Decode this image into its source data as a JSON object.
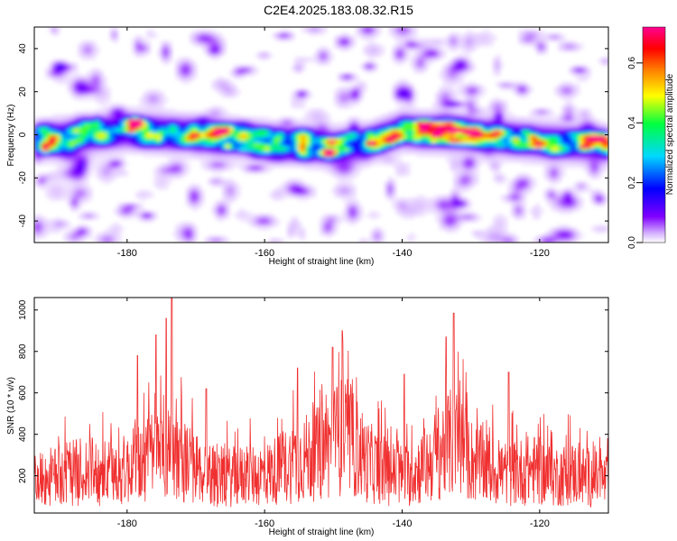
{
  "title": "C2E4.2025.183.08.32.R15",
  "colors": {
    "snr_line": "#f03030",
    "background": "#ffffff",
    "axis": "#000000"
  },
  "chart_data": [
    {
      "type": "heatmap",
      "xlabel": "Height of straight line (km)",
      "ylabel": "Frequency (Hz)",
      "xlim": [
        -193.5,
        -110
      ],
      "ylim": [
        -50,
        50
      ],
      "xticks": [
        -180,
        -160,
        -140,
        -120
      ],
      "yticks": [
        -40,
        -20,
        0,
        20,
        40
      ],
      "grid": false,
      "colorbar": {
        "label": "Normalized spectral amplitude",
        "range": [
          0,
          0.72
        ],
        "ticks": [
          0.0,
          0.2,
          0.4,
          0.6
        ],
        "colors": [
          "#ffffff",
          "#8000ff",
          "#0000ff",
          "#00e0ff",
          "#00ff40",
          "#ffff00",
          "#ff8000",
          "#ff0000",
          "#ff0080"
        ]
      },
      "band": {
        "center_freq_hz": [
          [
            -193.5,
            -3
          ],
          [
            -180,
            2
          ],
          [
            -170,
            0
          ],
          [
            -160,
            -3
          ],
          [
            -150,
            -6
          ],
          [
            -145,
            -4
          ],
          [
            -140,
            2
          ],
          [
            -130,
            0
          ],
          [
            -120,
            -3
          ],
          [
            -110,
            -5
          ]
        ],
        "half_width_hz": 7
      },
      "peaks": [
        {
          "x": -144.5,
          "y": -4,
          "value": 0.68
        },
        {
          "x": -135,
          "y": 0,
          "value": 0.7
        },
        {
          "x": -113.5,
          "y": -6,
          "value": 0.7
        },
        {
          "x": -179.5,
          "y": 2,
          "value": 0.45
        },
        {
          "x": -132.5,
          "y": 2,
          "value": 0.48
        },
        {
          "x": -123.5,
          "y": -2,
          "value": 0.4
        },
        {
          "x": -148,
          "y": -7,
          "value": 0.35
        },
        {
          "x": -170,
          "y": 0,
          "value": 0.32
        }
      ]
    },
    {
      "type": "line",
      "xlabel": "Height of straight line (km)",
      "ylabel": "SNR (10 * v/v)",
      "xlim": [
        -193.5,
        -110
      ],
      "ylim": [
        20,
        1060
      ],
      "xticks": [
        -180,
        -160,
        -140,
        -120
      ],
      "yticks": [
        200,
        400,
        600,
        800,
        1000
      ],
      "grid": false,
      "envelope": {
        "x": [
          -193.5,
          -190,
          -186,
          -183,
          -180,
          -176,
          -174,
          -172,
          -169,
          -166,
          -163,
          -160,
          -157,
          -155,
          -152,
          -149,
          -147,
          -145,
          -142,
          -139,
          -136,
          -134,
          -132,
          -130,
          -127,
          -124,
          -121,
          -118,
          -115,
          -112,
          -110
        ],
        "base": [
          170,
          195,
          220,
          205,
          225,
          290,
          330,
          270,
          210,
          185,
          195,
          200,
          240,
          270,
          300,
          380,
          340,
          260,
          210,
          195,
          260,
          330,
          360,
          270,
          220,
          205,
          225,
          195,
          205,
          180,
          170
        ],
        "peak_values": [
          {
            "x": -173.5,
            "y": 1060
          },
          {
            "x": -174.3,
            "y": 960
          },
          {
            "x": -148.7,
            "y": 900
          },
          {
            "x": -132.5,
            "y": 985
          },
          {
            "x": -133.6,
            "y": 870
          },
          {
            "x": -155.2,
            "y": 720
          },
          {
            "x": -178.5,
            "y": 780
          },
          {
            "x": -175.8,
            "y": 880
          },
          {
            "x": -150.1,
            "y": 820
          },
          {
            "x": -124.5,
            "y": 700
          },
          {
            "x": -168.5,
            "y": 620
          },
          {
            "x": -139.7,
            "y": 690
          }
        ]
      }
    }
  ]
}
